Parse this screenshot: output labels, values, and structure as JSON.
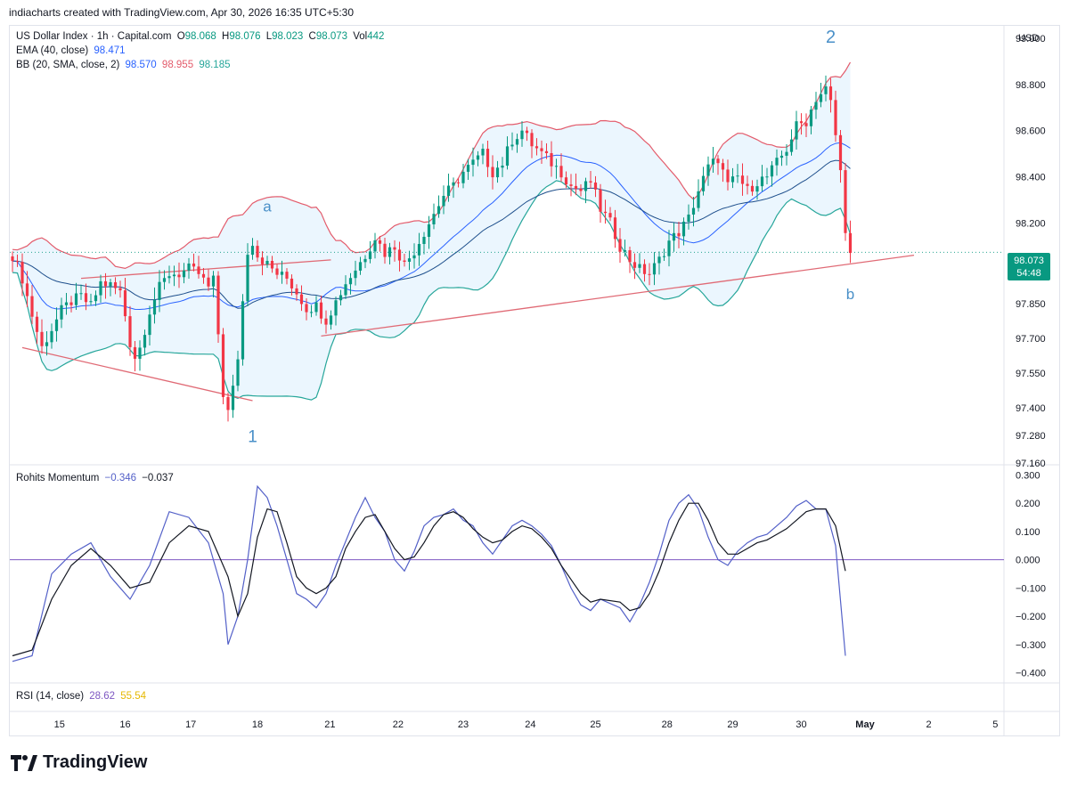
{
  "header": {
    "credit": "indiacharts created with TradingView.com, Apr 30, 2026 16:35 UTC+5:30"
  },
  "legend": {
    "symbol": "US Dollar Index · 1h · Capital.com",
    "o_label": "O",
    "o": "98.068",
    "h_label": "H",
    "h": "98.076",
    "l_label": "L",
    "l": "98.023",
    "c_label": "C",
    "c": "98.073",
    "vol_label": "Vol",
    "vol": "442",
    "ema_label": "EMA (40, close)",
    "ema": "98.471",
    "bb_label": "BB (20, SMA, close, 2)",
    "bb_mid": "98.570",
    "bb_up": "98.955",
    "bb_low": "98.185",
    "mom_label": "Rohits Momentum",
    "mom1": "−0.346",
    "mom2": "−0.037",
    "rsi_label": "RSI (14, close)",
    "rsi1": "28.62",
    "rsi2": "55.54"
  },
  "price_tag": {
    "price": "98.073",
    "countdown": "54:48"
  },
  "currency": "USD",
  "annotations": {
    "a": "a",
    "one": "1",
    "two": "2",
    "b": "b"
  },
  "colors": {
    "up": "#089981",
    "down": "#f23645",
    "bb_upper": "#e35b6b",
    "bb_lower": "#26a69a",
    "bb_basis": "#2962ff",
    "ema": "#1e4f8c",
    "band_fill": "#e3f2fd",
    "trendline": "#e06a75",
    "mom_fast": "#5360c8",
    "mom_slow": "#131722",
    "zero_line": "#7e57c2",
    "wave_label": "#4a90c8"
  },
  "brand": "TradingView",
  "chart_data": [
    {
      "type": "candlestick",
      "title": "US Dollar Index · 1h · Capital.com",
      "x_labels": [
        "15",
        "16",
        "17",
        "18",
        "21",
        "22",
        "23",
        "24",
        "25",
        "28",
        "29",
        "30",
        "May",
        "2",
        "5"
      ],
      "y_ticks": [
        "99.000",
        "98.800",
        "98.600",
        "98.400",
        "98.200",
        "97.850",
        "97.700",
        "97.550",
        "97.400",
        "97.280",
        "97.160"
      ],
      "ylim": [
        97.16,
        99.05
      ],
      "price_anchors": [
        [
          0,
          98.06
        ],
        [
          2,
          97.96
        ],
        [
          4,
          97.8
        ],
        [
          6,
          97.66
        ],
        [
          8,
          97.74
        ],
        [
          10,
          97.82
        ],
        [
          12,
          97.86
        ],
        [
          14,
          97.88
        ],
        [
          16,
          97.84
        ],
        [
          18,
          97.94
        ],
        [
          20,
          97.93
        ],
        [
          22,
          97.9
        ],
        [
          23,
          97.8
        ],
        [
          24,
          97.68
        ],
        [
          25,
          97.62
        ],
        [
          26,
          97.66
        ],
        [
          28,
          97.82
        ],
        [
          30,
          97.92
        ],
        [
          32,
          97.98
        ],
        [
          34,
          97.98
        ],
        [
          36,
          98.0
        ],
        [
          38,
          97.98
        ],
        [
          40,
          97.92
        ],
        [
          41,
          97.95
        ],
        [
          42,
          97.72
        ],
        [
          43,
          97.46
        ],
        [
          44,
          97.38
        ],
        [
          45,
          97.48
        ],
        [
          46,
          97.62
        ],
        [
          47,
          97.86
        ],
        [
          48,
          98.08
        ],
        [
          49,
          98.12
        ],
        [
          50,
          98.06
        ],
        [
          52,
          98.02
        ],
        [
          54,
          97.98
        ],
        [
          56,
          97.96
        ],
        [
          58,
          97.9
        ],
        [
          60,
          97.83
        ],
        [
          62,
          97.84
        ],
        [
          64,
          97.78
        ],
        [
          66,
          97.86
        ],
        [
          68,
          97.94
        ],
        [
          70,
          98.0
        ],
        [
          72,
          98.06
        ],
        [
          74,
          98.14
        ],
        [
          76,
          98.07
        ],
        [
          78,
          98.1
        ],
        [
          80,
          98.02
        ],
        [
          82,
          98.08
        ],
        [
          84,
          98.16
        ],
        [
          86,
          98.24
        ],
        [
          88,
          98.32
        ],
        [
          90,
          98.36
        ],
        [
          92,
          98.42
        ],
        [
          94,
          98.46
        ],
        [
          96,
          98.5
        ],
        [
          98,
          98.42
        ],
        [
          100,
          98.46
        ],
        [
          102,
          98.56
        ],
        [
          104,
          98.6
        ],
        [
          106,
          98.54
        ],
        [
          108,
          98.5
        ],
        [
          110,
          98.46
        ],
        [
          112,
          98.42
        ],
        [
          114,
          98.36
        ],
        [
          116,
          98.34
        ],
        [
          118,
          98.38
        ],
        [
          120,
          98.26
        ],
        [
          122,
          98.2
        ],
        [
          124,
          98.1
        ],
        [
          126,
          98.04
        ],
        [
          128,
          98.0
        ],
        [
          130,
          97.98
        ],
        [
          132,
          98.04
        ],
        [
          134,
          98.12
        ],
        [
          136,
          98.16
        ],
        [
          138,
          98.22
        ],
        [
          140,
          98.34
        ],
        [
          142,
          98.44
        ],
        [
          144,
          98.48
        ],
        [
          146,
          98.36
        ],
        [
          148,
          98.4
        ],
        [
          150,
          98.34
        ],
        [
          152,
          98.38
        ],
        [
          154,
          98.4
        ],
        [
          156,
          98.46
        ],
        [
          158,
          98.52
        ],
        [
          160,
          98.62
        ],
        [
          162,
          98.64
        ],
        [
          164,
          98.74
        ],
        [
          166,
          98.78
        ],
        [
          167,
          98.72
        ],
        [
          168,
          98.58
        ],
        [
          169,
          98.42
        ],
        [
          170,
          98.18
        ],
        [
          171,
          98.07
        ]
      ]
    },
    {
      "type": "line",
      "title": "Rohits Momentum",
      "y_ticks": [
        "0.300",
        "0.200",
        "0.100",
        "0.000",
        "−0.100",
        "−0.200",
        "−0.300",
        "−0.400"
      ],
      "ylim": [
        -0.43,
        0.33
      ],
      "series": [
        {
          "values": [
            [
              0,
              -0.36
            ],
            [
              4,
              -0.34
            ],
            [
              8,
              -0.05
            ],
            [
              12,
              0.02
            ],
            [
              16,
              0.06
            ],
            [
              20,
              -0.06
            ],
            [
              24,
              -0.14
            ],
            [
              28,
              -0.02
            ],
            [
              32,
              0.17
            ],
            [
              36,
              0.15
            ],
            [
              40,
              0.06
            ],
            [
              43,
              -0.12
            ],
            [
              44,
              -0.3
            ],
            [
              46,
              -0.2
            ],
            [
              48,
              0.0
            ],
            [
              50,
              0.26
            ],
            [
              52,
              0.22
            ],
            [
              54,
              0.12
            ],
            [
              56,
              0.0
            ],
            [
              58,
              -0.12
            ],
            [
              60,
              -0.14
            ],
            [
              62,
              -0.17
            ],
            [
              64,
              -0.12
            ],
            [
              66,
              -0.02
            ],
            [
              70,
              0.15
            ],
            [
              72,
              0.22
            ],
            [
              74,
              0.15
            ],
            [
              76,
              0.1
            ],
            [
              78,
              0.0
            ],
            [
              80,
              -0.04
            ],
            [
              82,
              0.03
            ],
            [
              84,
              0.12
            ],
            [
              86,
              0.15
            ],
            [
              88,
              0.16
            ],
            [
              90,
              0.18
            ],
            [
              92,
              0.14
            ],
            [
              94,
              0.12
            ],
            [
              96,
              0.06
            ],
            [
              98,
              0.02
            ],
            [
              100,
              0.07
            ],
            [
              102,
              0.12
            ],
            [
              104,
              0.14
            ],
            [
              106,
              0.12
            ],
            [
              108,
              0.09
            ],
            [
              110,
              0.05
            ],
            [
              112,
              -0.02
            ],
            [
              114,
              -0.1
            ],
            [
              116,
              -0.16
            ],
            [
              118,
              -0.18
            ],
            [
              120,
              -0.14
            ],
            [
              124,
              -0.17
            ],
            [
              126,
              -0.22
            ],
            [
              128,
              -0.16
            ],
            [
              130,
              -0.08
            ],
            [
              132,
              0.02
            ],
            [
              134,
              0.14
            ],
            [
              136,
              0.2
            ],
            [
              138,
              0.23
            ],
            [
              140,
              0.18
            ],
            [
              142,
              0.08
            ],
            [
              144,
              0.0
            ],
            [
              146,
              -0.02
            ],
            [
              148,
              0.03
            ],
            [
              150,
              0.06
            ],
            [
              152,
              0.08
            ],
            [
              154,
              0.09
            ],
            [
              156,
              0.12
            ],
            [
              158,
              0.15
            ],
            [
              160,
              0.19
            ],
            [
              162,
              0.21
            ],
            [
              164,
              0.18
            ],
            [
              166,
              0.18
            ],
            [
              168,
              0.05
            ],
            [
              170,
              -0.34
            ]
          ]
        },
        {
          "values": [
            [
              0,
              -0.34
            ],
            [
              4,
              -0.32
            ],
            [
              8,
              -0.14
            ],
            [
              12,
              -0.02
            ],
            [
              16,
              0.04
            ],
            [
              20,
              -0.02
            ],
            [
              24,
              -0.1
            ],
            [
              28,
              -0.08
            ],
            [
              32,
              0.06
            ],
            [
              36,
              0.12
            ],
            [
              40,
              0.1
            ],
            [
              44,
              -0.06
            ],
            [
              46,
              -0.2
            ],
            [
              48,
              -0.12
            ],
            [
              50,
              0.08
            ],
            [
              52,
              0.18
            ],
            [
              54,
              0.17
            ],
            [
              56,
              0.06
            ],
            [
              58,
              -0.06
            ],
            [
              60,
              -0.1
            ],
            [
              62,
              -0.12
            ],
            [
              64,
              -0.1
            ],
            [
              66,
              -0.06
            ],
            [
              68,
              0.04
            ],
            [
              70,
              0.1
            ],
            [
              72,
              0.15
            ],
            [
              74,
              0.16
            ],
            [
              76,
              0.1
            ],
            [
              78,
              0.04
            ],
            [
              80,
              0.0
            ],
            [
              82,
              0.01
            ],
            [
              84,
              0.06
            ],
            [
              86,
              0.12
            ],
            [
              88,
              0.16
            ],
            [
              90,
              0.17
            ],
            [
              92,
              0.15
            ],
            [
              94,
              0.11
            ],
            [
              96,
              0.08
            ],
            [
              98,
              0.06
            ],
            [
              100,
              0.07
            ],
            [
              102,
              0.1
            ],
            [
              104,
              0.12
            ],
            [
              106,
              0.11
            ],
            [
              108,
              0.08
            ],
            [
              110,
              0.04
            ],
            [
              112,
              -0.02
            ],
            [
              114,
              -0.07
            ],
            [
              116,
              -0.12
            ],
            [
              118,
              -0.15
            ],
            [
              120,
              -0.14
            ],
            [
              124,
              -0.15
            ],
            [
              126,
              -0.18
            ],
            [
              128,
              -0.17
            ],
            [
              130,
              -0.12
            ],
            [
              132,
              -0.04
            ],
            [
              134,
              0.06
            ],
            [
              136,
              0.14
            ],
            [
              138,
              0.2
            ],
            [
              140,
              0.2
            ],
            [
              142,
              0.14
            ],
            [
              144,
              0.06
            ],
            [
              146,
              0.02
            ],
            [
              148,
              0.02
            ],
            [
              150,
              0.04
            ],
            [
              152,
              0.06
            ],
            [
              154,
              0.07
            ],
            [
              156,
              0.09
            ],
            [
              158,
              0.11
            ],
            [
              160,
              0.14
            ],
            [
              162,
              0.17
            ],
            [
              164,
              0.18
            ],
            [
              166,
              0.18
            ],
            [
              168,
              0.12
            ],
            [
              170,
              -0.04
            ]
          ]
        }
      ]
    },
    {
      "type": "line",
      "title": "RSI (14, close)"
    }
  ]
}
